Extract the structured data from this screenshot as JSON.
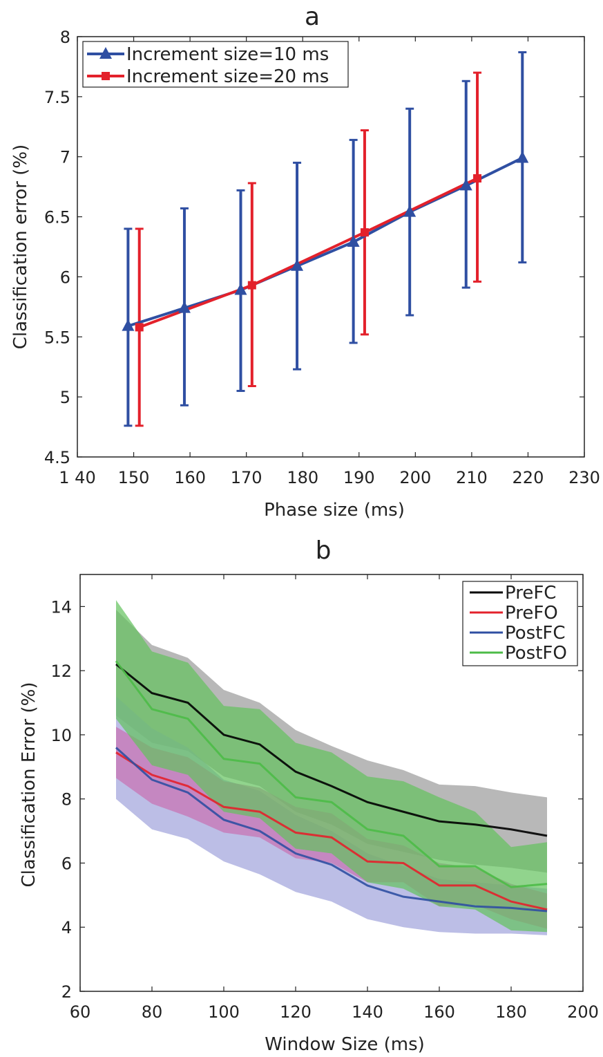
{
  "chart_data": [
    {
      "type": "line",
      "title": "a",
      "xlabel": "Phase size (ms)",
      "ylabel": "Classification error (%)",
      "xlim": [
        140,
        230
      ],
      "ylim": [
        4.5,
        8
      ],
      "x_ticks": [
        140,
        150,
        160,
        170,
        180,
        190,
        200,
        210,
        220,
        230
      ],
      "x_tick_labels": [
        "1 40",
        "150",
        "160",
        "170",
        "180",
        "190",
        "200",
        "210",
        "220",
        "230"
      ],
      "y_ticks": [
        4.5,
        5,
        5.5,
        6,
        6.5,
        7,
        7.5,
        8
      ],
      "y_tick_labels": [
        "4.5",
        "5",
        "5.5",
        "6",
        "6.5",
        "7",
        "7.5",
        "8"
      ],
      "legend_position": "top-left",
      "series": [
        {
          "name": "Increment size=10 ms",
          "color": "#2f4fa2",
          "marker": "triangle",
          "x": [
            149,
            159,
            169,
            179,
            189,
            199,
            209,
            219
          ],
          "y": [
            5.59,
            5.74,
            5.89,
            6.09,
            6.29,
            6.54,
            6.76,
            6.99
          ],
          "err_low": [
            4.76,
            4.93,
            5.05,
            5.23,
            5.45,
            5.68,
            5.91,
            6.12
          ],
          "err_high": [
            6.4,
            6.57,
            6.72,
            6.95,
            7.14,
            7.4,
            7.63,
            7.87
          ]
        },
        {
          "name": "Increment size=20 ms",
          "color": "#e3212b",
          "marker": "square",
          "x": [
            151,
            171,
            191,
            211
          ],
          "y": [
            5.58,
            5.93,
            6.37,
            6.82
          ],
          "err_low": [
            4.76,
            5.09,
            5.52,
            5.96
          ],
          "err_high": [
            6.4,
            6.78,
            7.22,
            7.7
          ]
        }
      ]
    },
    {
      "type": "area",
      "title": "b",
      "xlabel": "Window Size (ms)",
      "ylabel": "Classification Error (%)",
      "xlim": [
        60,
        200
      ],
      "ylim": [
        2,
        15
      ],
      "x_ticks": [
        60,
        80,
        100,
        120,
        140,
        160,
        180,
        200
      ],
      "y_ticks": [
        2,
        4,
        6,
        8,
        10,
        12,
        14
      ],
      "legend_position": "top-right",
      "x": [
        70,
        80,
        90,
        100,
        110,
        120,
        130,
        140,
        150,
        160,
        170,
        180,
        190
      ],
      "series": [
        {
          "name": "PreFC",
          "color": "#000000",
          "band_color": "#9a9a9a",
          "mean": [
            12.2,
            11.3,
            11.0,
            10.0,
            9.7,
            8.85,
            8.4,
            7.9,
            7.6,
            7.3,
            7.2,
            7.05,
            6.85
          ],
          "upper": [
            13.9,
            12.8,
            12.4,
            11.4,
            11.0,
            10.15,
            9.65,
            9.2,
            8.9,
            8.45,
            8.4,
            8.2,
            8.05
          ],
          "lower": [
            10.6,
            9.75,
            9.5,
            8.7,
            8.4,
            7.6,
            7.2,
            6.6,
            6.35,
            6.1,
            5.95,
            5.85,
            5.7
          ]
        },
        {
          "name": "PreFO",
          "color": "#e3212b",
          "band_color": "#c96fb0",
          "mean": [
            9.45,
            8.75,
            8.4,
            7.75,
            7.6,
            6.95,
            6.8,
            6.05,
            6.0,
            5.3,
            5.3,
            4.8,
            4.55
          ],
          "upper": [
            10.25,
            9.6,
            9.3,
            8.55,
            8.35,
            7.75,
            7.55,
            6.75,
            6.55,
            6.0,
            5.85,
            5.35,
            5.05
          ],
          "lower": [
            8.65,
            7.85,
            7.45,
            6.95,
            6.8,
            6.15,
            6.0,
            5.4,
            5.4,
            4.65,
            4.7,
            4.25,
            3.95
          ]
        },
        {
          "name": "PostFC",
          "color": "#2f4fa2",
          "band_color": "#9fa3dc",
          "mean": [
            9.6,
            8.6,
            8.2,
            7.35,
            7.0,
            6.3,
            5.95,
            5.3,
            4.95,
            4.8,
            4.65,
            4.6,
            4.5
          ],
          "upper": [
            11.2,
            10.2,
            9.6,
            8.6,
            8.25,
            7.5,
            7.0,
            6.3,
            5.9,
            5.5,
            5.4,
            5.3,
            5.2
          ],
          "lower": [
            8.0,
            7.05,
            6.75,
            6.05,
            5.65,
            5.1,
            4.8,
            4.25,
            4.0,
            3.85,
            3.8,
            3.8,
            3.75
          ]
        },
        {
          "name": "PostFO",
          "color": "#4cbb47",
          "band_color": "#62c25c",
          "mean": [
            12.3,
            10.8,
            10.5,
            9.25,
            9.1,
            8.05,
            7.9,
            7.05,
            6.85,
            5.9,
            5.9,
            5.25,
            5.35
          ],
          "upper": [
            14.2,
            12.6,
            12.25,
            10.9,
            10.8,
            9.75,
            9.45,
            8.7,
            8.55,
            8.05,
            7.6,
            6.5,
            6.65
          ],
          "lower": [
            10.5,
            9.05,
            8.75,
            7.6,
            7.4,
            6.45,
            6.3,
            5.4,
            5.2,
            4.65,
            4.55,
            3.9,
            3.85
          ]
        }
      ]
    }
  ]
}
